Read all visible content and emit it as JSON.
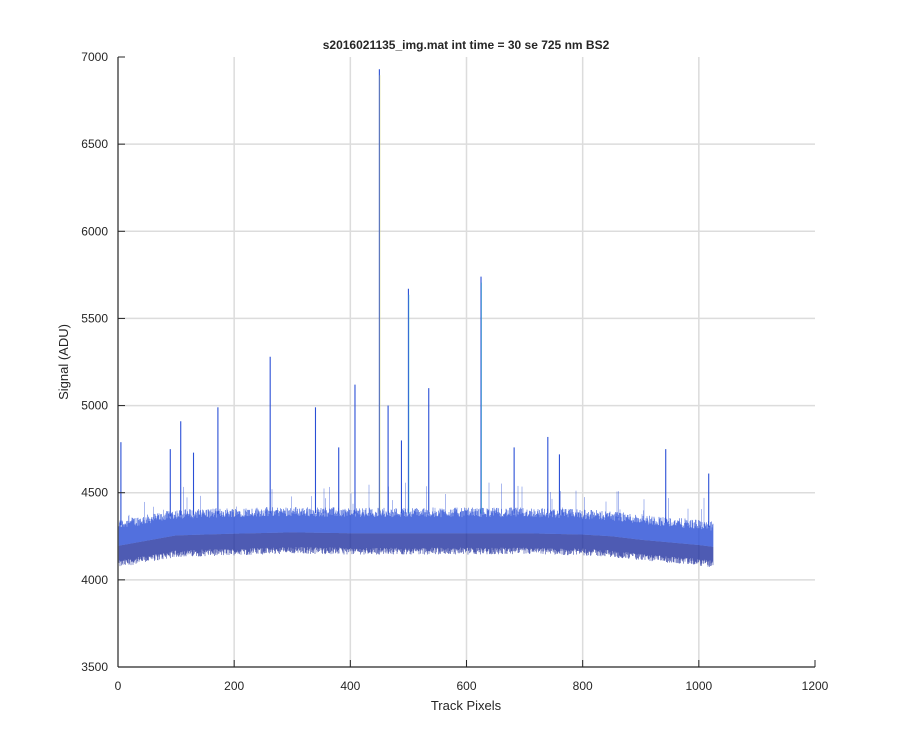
{
  "figure": {
    "title": "s2016021135_img.mat int time = 30 se  725 nm BS2",
    "xlabel": "Track Pixels",
    "ylabel": "Signal (ADU)"
  },
  "chart_data": {
    "type": "line",
    "title": "s2016021135_img.mat int time = 30 se  725 nm BS2",
    "xlabel": "Track Pixels",
    "ylabel": "Signal (ADU)",
    "xlim": [
      0,
      1200
    ],
    "ylim": [
      3500,
      7000
    ],
    "grid": true,
    "x_ticks": [
      0,
      200,
      400,
      600,
      800,
      1000,
      1200
    ],
    "y_ticks": [
      3500,
      4000,
      4500,
      5000,
      5500,
      6000,
      6500,
      7000
    ],
    "x_tick_labels": [
      "0",
      "200",
      "400",
      "600",
      "800",
      "1000",
      "1200"
    ],
    "y_tick_labels": [
      "3500",
      "4000",
      "4500",
      "5000",
      "5500",
      "6000",
      "6500",
      "7000"
    ],
    "x_range_data": [
      1,
      1024
    ],
    "baseline_band": {
      "x": [
        0,
        100,
        200,
        300,
        400,
        500,
        600,
        700,
        800,
        850,
        900,
        1000,
        1024
      ],
      "low": [
        4090,
        4150,
        4160,
        4170,
        4165,
        4165,
        4165,
        4165,
        4160,
        4150,
        4130,
        4100,
        4090
      ],
      "high": [
        4310,
        4370,
        4380,
        4385,
        4380,
        4380,
        4380,
        4380,
        4370,
        4360,
        4340,
        4310,
        4300
      ]
    },
    "spikes": [
      {
        "x": 5,
        "y": 4790
      },
      {
        "x": 90,
        "y": 4750
      },
      {
        "x": 108,
        "y": 4910
      },
      {
        "x": 130,
        "y": 4730
      },
      {
        "x": 172,
        "y": 4990
      },
      {
        "x": 262,
        "y": 5280
      },
      {
        "x": 340,
        "y": 4990
      },
      {
        "x": 380,
        "y": 4760
      },
      {
        "x": 408,
        "y": 5120
      },
      {
        "x": 450,
        "y": 6930
      },
      {
        "x": 465,
        "y": 5000
      },
      {
        "x": 488,
        "y": 4800
      },
      {
        "x": 500,
        "y": 5670
      },
      {
        "x": 535,
        "y": 5100
      },
      {
        "x": 625,
        "y": 5740
      },
      {
        "x": 682,
        "y": 4760
      },
      {
        "x": 740,
        "y": 4820
      },
      {
        "x": 760,
        "y": 4720
      },
      {
        "x": 943,
        "y": 4750
      },
      {
        "x": 1017,
        "y": 4610
      }
    ],
    "colors": {
      "series": "#2a4fd6",
      "series_dark": "#1f2f9e",
      "spike_highlight": "#d9d96a",
      "spike_cyan": "#4fc9c9",
      "axis": "#262626",
      "grid": "#dcdcdc"
    }
  }
}
